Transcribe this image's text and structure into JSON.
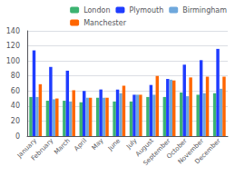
{
  "chart_data": {
    "type": "bar",
    "categories": [
      "January",
      "February",
      "March",
      "April",
      "May",
      "June",
      "July",
      "August",
      "September",
      "October",
      "November",
      "December"
    ],
    "series": [
      {
        "name": "London",
        "color": "#3cb371",
        "values": [
          52,
          47,
          47,
          45,
          51,
          46,
          46,
          52,
          52,
          58,
          55,
          57
        ]
      },
      {
        "name": "Plymouth",
        "color": "#1f3cff",
        "values": [
          114,
          92,
          87,
          60,
          62,
          62,
          55,
          68,
          76,
          95,
          101,
          116
        ]
      },
      {
        "name": "Birmingham",
        "color": "#6fa8dc",
        "values": [
          52,
          49,
          46,
          51,
          51,
          57,
          55,
          55,
          75,
          53,
          57,
          63
        ]
      },
      {
        "name": "Manchester",
        "color": "#ff6600",
        "values": [
          69,
          50,
          61,
          51,
          51,
          67,
          55,
          80,
          74,
          78,
          79,
          79
        ]
      }
    ],
    "ylim": [
      0,
      140
    ],
    "yticks": [
      0,
      20,
      40,
      60,
      80,
      100,
      120,
      140
    ],
    "grid": true,
    "legend": "upper right"
  }
}
